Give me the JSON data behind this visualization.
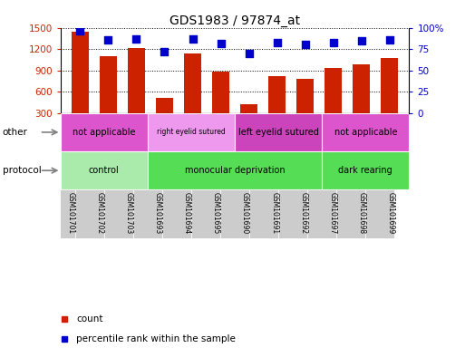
{
  "title": "GDS1983 / 97874_at",
  "samples": [
    "GSM101701",
    "GSM101702",
    "GSM101703",
    "GSM101693",
    "GSM101694",
    "GSM101695",
    "GSM101690",
    "GSM101691",
    "GSM101692",
    "GSM101697",
    "GSM101698",
    "GSM101699"
  ],
  "counts": [
    1450,
    1100,
    1210,
    510,
    1140,
    880,
    420,
    820,
    780,
    930,
    980,
    1080
  ],
  "percentile": [
    96,
    86,
    87,
    72,
    87,
    82,
    70,
    83,
    81,
    83,
    85,
    86
  ],
  "ylim_left": [
    300,
    1500
  ],
  "ylim_right": [
    0,
    100
  ],
  "yticks_left": [
    300,
    600,
    900,
    1200,
    1500
  ],
  "yticks_right": [
    0,
    25,
    50,
    75,
    100
  ],
  "bar_color": "#cc2200",
  "dot_color": "#0000cc",
  "protocol_groups": [
    {
      "label": "control",
      "start": 0,
      "end": 3,
      "color": "#aaeaaa"
    },
    {
      "label": "monocular deprivation",
      "start": 3,
      "end": 9,
      "color": "#55dd55"
    },
    {
      "label": "dark rearing",
      "start": 9,
      "end": 12,
      "color": "#55dd55"
    }
  ],
  "other_groups": [
    {
      "label": "not applicable",
      "start": 0,
      "end": 3,
      "color": "#dd55cc"
    },
    {
      "label": "right eyelid sutured",
      "start": 3,
      "end": 6,
      "color": "#ee99ee"
    },
    {
      "label": "left eyelid sutured",
      "start": 6,
      "end": 9,
      "color": "#cc44bb"
    },
    {
      "label": "not applicable",
      "start": 9,
      "end": 12,
      "color": "#dd55cc"
    }
  ],
  "xtick_bg_color": "#cccccc",
  "legend_count_color": "#cc2200",
  "legend_dot_color": "#0000cc",
  "bg_color": "#ffffff"
}
